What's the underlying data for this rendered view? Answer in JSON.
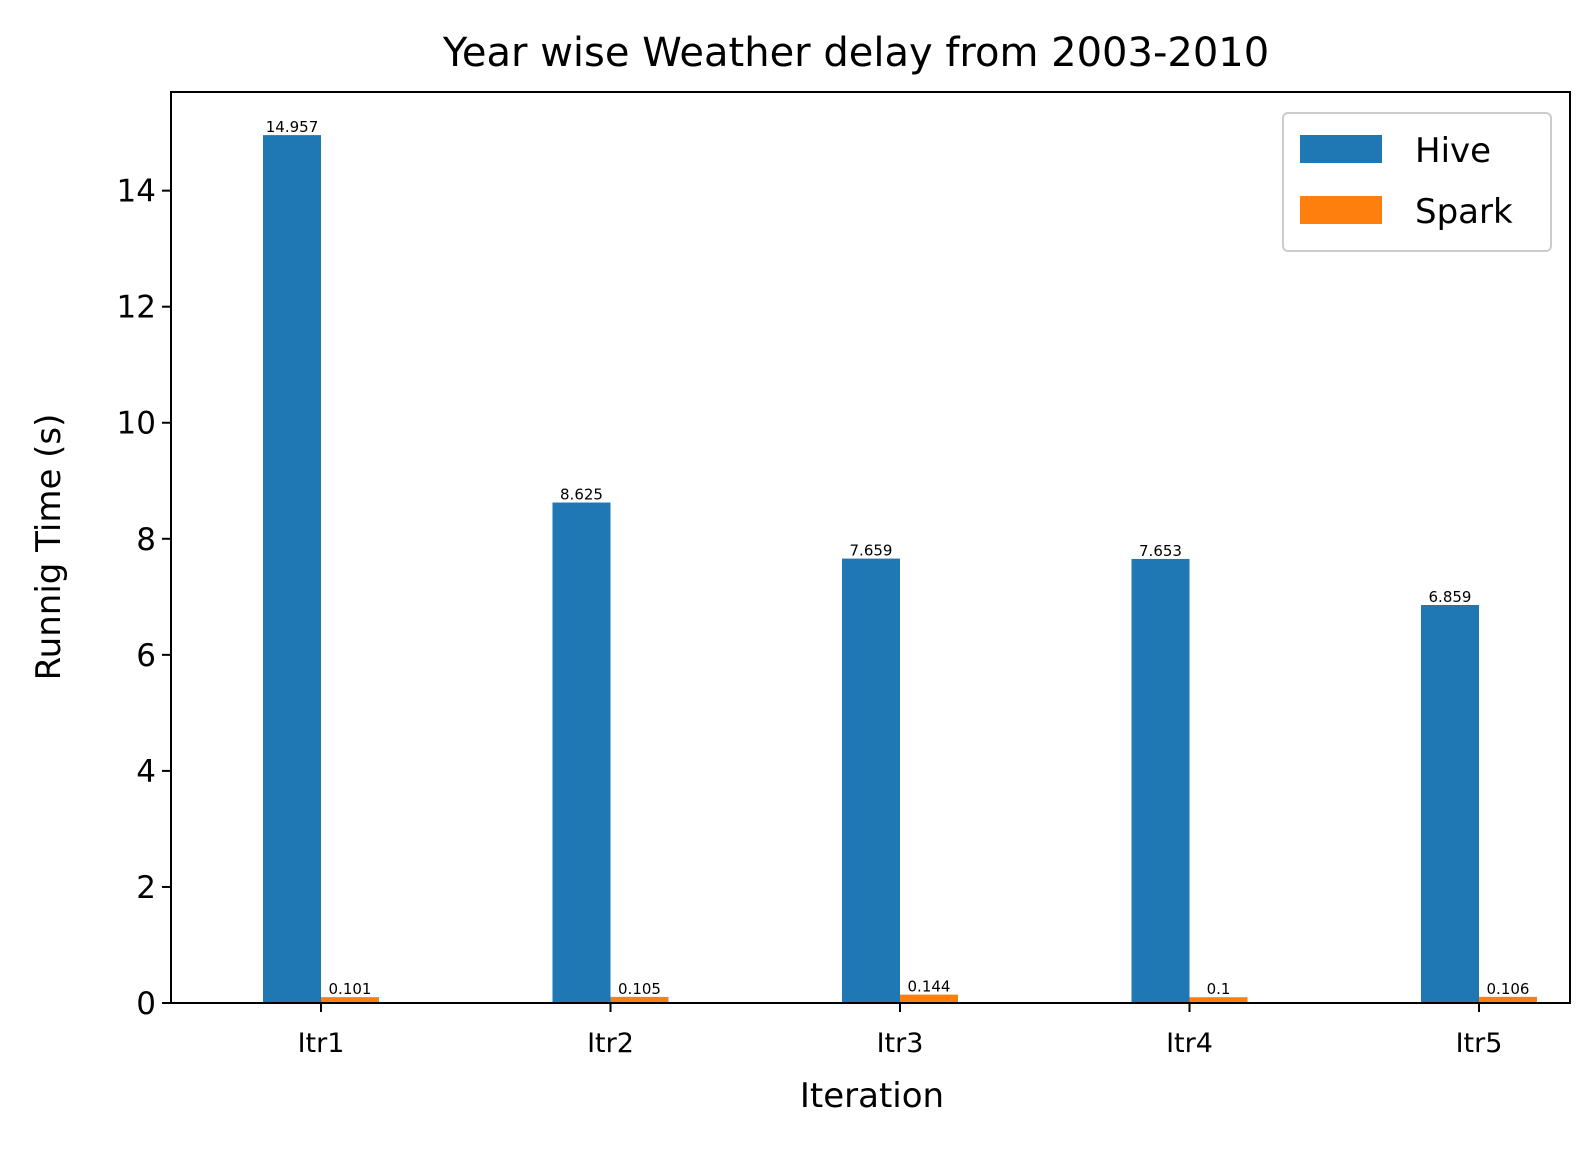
{
  "chart_data": {
    "type": "bar",
    "title": "Year wise Weather delay from 2003-2010",
    "xlabel": "Iteration",
    "ylabel": "Runnig Time (s)",
    "categories": [
      "Itr1",
      "Itr2",
      "Itr3",
      "Itr4",
      "Itr5"
    ],
    "series": [
      {
        "name": "Hive",
        "color": "#1f77b4",
        "values": [
          14.957,
          8.625,
          7.659,
          7.653,
          6.859
        ],
        "labels": [
          "14.957",
          "8.625",
          "7.659",
          "7.653",
          "6.859"
        ]
      },
      {
        "name": "Spark",
        "color": "#ff7f0e",
        "values": [
          0.101,
          0.105,
          0.144,
          0.1,
          0.106
        ],
        "labels": [
          "0.101",
          "0.105",
          "0.144",
          "0.1",
          "0.106"
        ]
      }
    ],
    "ylim": [
      0,
      15.7
    ],
    "yticks": [
      0,
      2,
      4,
      6,
      8,
      10,
      12,
      14
    ],
    "ytick_labels": [
      "0",
      "2",
      "4",
      "6",
      "8",
      "10",
      "12",
      "14"
    ],
    "grid": false,
    "legend_position": "top-right"
  }
}
